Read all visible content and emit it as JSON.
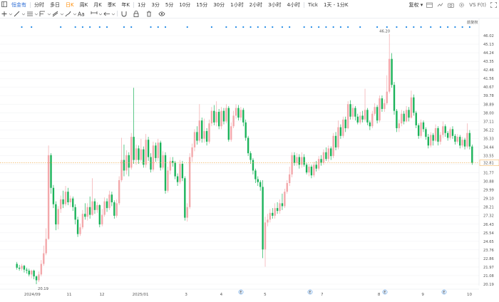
{
  "toolbar": {
    "symbol": "恒金有",
    "periods": [
      "分时",
      "多日",
      "日K",
      "周K",
      "月K",
      "季K",
      "年K",
      "1分",
      "3分",
      "5分",
      "10分",
      "15分",
      "30分",
      "1小时",
      "2小时",
      "3小时",
      "4小时",
      "Tick",
      "1天 - 1分K"
    ],
    "active_period": "日K",
    "right_text": "复权",
    "fx_text": "VS",
    "fx_suffix": "F(t)",
    "icons": [
      "calendar-icon",
      "compare-icon",
      "camera-icon",
      "settings-icon",
      "fullscreen-icon"
    ]
  },
  "drawing_tools": [
    "crosshair-icon",
    "trend-line-icon",
    "horizontal-line-icon",
    "fibonacci-icon",
    "channel-icon",
    "brush-icon",
    "text-icon",
    "measure-icon",
    "arrow-icon",
    "magnet-icon",
    "lock-icon",
    "trash-icon",
    "eye-icon"
  ],
  "chart_data": {
    "type": "candlestick",
    "title": "",
    "y_ticks": [
      "46.02",
      "45.13",
      "44.24",
      "43.35",
      "42.46",
      "41.56",
      "40.67",
      "39.78",
      "38.89",
      "38.00",
      "37.11",
      "36.22",
      "35.33",
      "34.44",
      "33.55",
      "32.66",
      "31.77",
      "30.88",
      "29.99",
      "29.10",
      "28.21",
      "27.32",
      "26.43",
      "25.54",
      "24.65",
      "23.76",
      "22.86",
      "21.97",
      "21.08",
      "20.19"
    ],
    "ylim": [
      20.19,
      46.02
    ],
    "current_price": "32.81",
    "max_label": "46.20",
    "min_label": "20.19",
    "x_labels": [
      "2024/09",
      "11",
      "12",
      "2025/01",
      "3",
      "4",
      "5",
      "7",
      "8",
      "9",
      "10"
    ],
    "event_markers": [
      "E",
      "E",
      "E",
      "E"
    ],
    "top_link": "前复权",
    "colors": {
      "up": "#f3a8ab",
      "down": "#1bb35a",
      "grid": "#f1f2f4",
      "price_line": "#f0a640",
      "marker": "#1e88e5"
    },
    "candles": [
      {
        "o": 22.3,
        "c": 21.9,
        "h": 22.5,
        "l": 21.7
      },
      {
        "o": 21.9,
        "c": 21.8,
        "h": 22.2,
        "l": 21.6
      },
      {
        "o": 21.8,
        "c": 22.1,
        "h": 22.3,
        "l": 21.6
      },
      {
        "o": 22.1,
        "c": 21.7,
        "h": 22.2,
        "l": 21.4
      },
      {
        "o": 21.7,
        "c": 21.6,
        "h": 21.9,
        "l": 21.3
      },
      {
        "o": 21.6,
        "c": 21.2,
        "h": 21.8,
        "l": 21.0
      },
      {
        "o": 21.2,
        "c": 21.6,
        "h": 21.7,
        "l": 20.8
      },
      {
        "o": 21.6,
        "c": 21.0,
        "h": 21.7,
        "l": 20.7
      },
      {
        "o": 21.0,
        "c": 20.6,
        "h": 21.1,
        "l": 20.19
      },
      {
        "o": 20.6,
        "c": 21.2,
        "h": 21.5,
        "l": 20.4
      },
      {
        "o": 21.2,
        "c": 22.3,
        "h": 22.7,
        "l": 21.0
      },
      {
        "o": 22.3,
        "c": 23.4,
        "h": 24.2,
        "l": 22.1
      },
      {
        "o": 23.4,
        "c": 24.9,
        "h": 26.0,
        "l": 23.2
      },
      {
        "o": 24.9,
        "c": 33.6,
        "h": 34.6,
        "l": 24.8
      },
      {
        "o": 33.6,
        "c": 30.2,
        "h": 33.8,
        "l": 29.6
      },
      {
        "o": 30.2,
        "c": 28.5,
        "h": 30.5,
        "l": 28.1
      },
      {
        "o": 28.5,
        "c": 26.4,
        "h": 28.8,
        "l": 25.8
      },
      {
        "o": 26.4,
        "c": 28.0,
        "h": 28.3,
        "l": 25.9
      },
      {
        "o": 28.0,
        "c": 29.0,
        "h": 29.4,
        "l": 27.6
      },
      {
        "o": 29.0,
        "c": 28.5,
        "h": 29.9,
        "l": 28.1
      },
      {
        "o": 28.5,
        "c": 29.8,
        "h": 30.4,
        "l": 28.3
      },
      {
        "o": 29.8,
        "c": 28.7,
        "h": 30.2,
        "l": 28.4
      },
      {
        "o": 28.7,
        "c": 29.1,
        "h": 29.4,
        "l": 28.2
      },
      {
        "o": 29.1,
        "c": 28.2,
        "h": 29.3,
        "l": 27.8
      },
      {
        "o": 28.2,
        "c": 26.9,
        "h": 28.5,
        "l": 26.4
      },
      {
        "o": 26.9,
        "c": 25.4,
        "h": 27.2,
        "l": 25.1
      },
      {
        "o": 25.4,
        "c": 26.1,
        "h": 26.5,
        "l": 25.2
      },
      {
        "o": 26.1,
        "c": 27.5,
        "h": 27.9,
        "l": 25.9
      },
      {
        "o": 27.5,
        "c": 27.2,
        "h": 28.6,
        "l": 26.9
      },
      {
        "o": 27.2,
        "c": 28.2,
        "h": 28.6,
        "l": 26.8
      },
      {
        "o": 28.2,
        "c": 27.4,
        "h": 29.3,
        "l": 27.0
      },
      {
        "o": 27.4,
        "c": 28.8,
        "h": 31.2,
        "l": 27.3
      },
      {
        "o": 28.8,
        "c": 27.9,
        "h": 29.1,
        "l": 27.5
      },
      {
        "o": 27.9,
        "c": 28.4,
        "h": 28.7,
        "l": 27.6
      },
      {
        "o": 28.4,
        "c": 26.4,
        "h": 28.5,
        "l": 26.1
      },
      {
        "o": 26.4,
        "c": 27.4,
        "h": 28.0,
        "l": 26.2
      },
      {
        "o": 27.4,
        "c": 28.8,
        "h": 29.2,
        "l": 27.2
      },
      {
        "o": 28.8,
        "c": 28.1,
        "h": 29.1,
        "l": 27.7
      },
      {
        "o": 28.1,
        "c": 29.5,
        "h": 29.9,
        "l": 27.9
      },
      {
        "o": 29.5,
        "c": 28.7,
        "h": 29.8,
        "l": 28.3
      },
      {
        "o": 28.7,
        "c": 27.3,
        "h": 28.9,
        "l": 27.0
      },
      {
        "o": 27.3,
        "c": 28.6,
        "h": 29.0,
        "l": 27.1
      },
      {
        "o": 28.6,
        "c": 31.0,
        "h": 31.4,
        "l": 28.4
      },
      {
        "o": 31.0,
        "c": 33.1,
        "h": 35.4,
        "l": 30.8
      },
      {
        "o": 33.1,
        "c": 32.0,
        "h": 34.7,
        "l": 31.4
      },
      {
        "o": 32.0,
        "c": 33.6,
        "h": 34.1,
        "l": 31.6
      },
      {
        "o": 33.6,
        "c": 32.3,
        "h": 33.9,
        "l": 31.4
      },
      {
        "o": 32.3,
        "c": 35.5,
        "h": 35.9,
        "l": 32.1
      },
      {
        "o": 35.5,
        "c": 33.1,
        "h": 40.6,
        "l": 32.7
      },
      {
        "o": 33.1,
        "c": 34.3,
        "h": 34.7,
        "l": 32.6
      },
      {
        "o": 34.3,
        "c": 33.1,
        "h": 34.6,
        "l": 32.7
      },
      {
        "o": 33.1,
        "c": 34.2,
        "h": 35.3,
        "l": 32.9
      },
      {
        "o": 34.2,
        "c": 32.6,
        "h": 34.5,
        "l": 32.3
      },
      {
        "o": 32.6,
        "c": 35.2,
        "h": 35.8,
        "l": 32.3
      },
      {
        "o": 35.2,
        "c": 33.4,
        "h": 35.5,
        "l": 33.0
      },
      {
        "o": 33.4,
        "c": 32.1,
        "h": 33.8,
        "l": 31.8
      },
      {
        "o": 32.1,
        "c": 34.6,
        "h": 35.0,
        "l": 31.9
      },
      {
        "o": 34.6,
        "c": 33.3,
        "h": 34.9,
        "l": 32.9
      },
      {
        "o": 33.3,
        "c": 34.9,
        "h": 35.3,
        "l": 33.0
      },
      {
        "o": 34.9,
        "c": 32.3,
        "h": 35.1,
        "l": 32.0
      },
      {
        "o": 32.3,
        "c": 33.6,
        "h": 34.0,
        "l": 32.1
      },
      {
        "o": 33.6,
        "c": 29.9,
        "h": 33.9,
        "l": 29.6
      },
      {
        "o": 29.9,
        "c": 32.0,
        "h": 32.4,
        "l": 29.7
      },
      {
        "o": 32.0,
        "c": 33.0,
        "h": 33.4,
        "l": 31.6
      },
      {
        "o": 33.0,
        "c": 32.8,
        "h": 33.4,
        "l": 32.4
      },
      {
        "o": 32.8,
        "c": 31.4,
        "h": 33.0,
        "l": 31.1
      },
      {
        "o": 31.4,
        "c": 30.8,
        "h": 31.7,
        "l": 30.4
      },
      {
        "o": 30.8,
        "c": 32.7,
        "h": 33.1,
        "l": 30.6
      },
      {
        "o": 32.7,
        "c": 31.2,
        "h": 33.0,
        "l": 30.9
      },
      {
        "o": 31.2,
        "c": 27.1,
        "h": 31.4,
        "l": 26.8
      },
      {
        "o": 27.1,
        "c": 28.2,
        "h": 28.6,
        "l": 26.7
      },
      {
        "o": 28.2,
        "c": 33.4,
        "h": 33.8,
        "l": 28.0
      },
      {
        "o": 33.4,
        "c": 34.4,
        "h": 34.8,
        "l": 32.9
      },
      {
        "o": 34.4,
        "c": 36.0,
        "h": 36.3,
        "l": 34.0
      },
      {
        "o": 36.0,
        "c": 35.1,
        "h": 36.6,
        "l": 34.7
      },
      {
        "o": 35.1,
        "c": 37.2,
        "h": 38.9,
        "l": 34.9
      },
      {
        "o": 37.2,
        "c": 35.3,
        "h": 37.5,
        "l": 34.9
      },
      {
        "o": 35.3,
        "c": 36.1,
        "h": 37.4,
        "l": 34.9
      },
      {
        "o": 36.1,
        "c": 35.0,
        "h": 36.4,
        "l": 34.6
      },
      {
        "o": 35.0,
        "c": 36.9,
        "h": 37.3,
        "l": 34.8
      },
      {
        "o": 36.9,
        "c": 38.2,
        "h": 38.6,
        "l": 36.6
      },
      {
        "o": 38.2,
        "c": 37.0,
        "h": 38.8,
        "l": 36.7
      },
      {
        "o": 37.0,
        "c": 38.1,
        "h": 39.2,
        "l": 36.6
      },
      {
        "o": 38.1,
        "c": 36.6,
        "h": 38.4,
        "l": 36.3
      },
      {
        "o": 36.6,
        "c": 38.2,
        "h": 38.6,
        "l": 36.3
      },
      {
        "o": 38.2,
        "c": 37.1,
        "h": 38.5,
        "l": 36.8
      },
      {
        "o": 37.1,
        "c": 38.5,
        "h": 38.9,
        "l": 36.9
      },
      {
        "o": 38.5,
        "c": 35.2,
        "h": 38.7,
        "l": 35.0
      },
      {
        "o": 35.2,
        "c": 36.6,
        "h": 37.0,
        "l": 35.0
      },
      {
        "o": 36.6,
        "c": 37.7,
        "h": 38.2,
        "l": 36.4
      },
      {
        "o": 37.7,
        "c": 38.5,
        "h": 38.9,
        "l": 37.4
      },
      {
        "o": 38.5,
        "c": 37.5,
        "h": 38.8,
        "l": 37.2
      },
      {
        "o": 37.5,
        "c": 38.3,
        "h": 38.6,
        "l": 37.2
      },
      {
        "o": 38.3,
        "c": 37.0,
        "h": 38.5,
        "l": 36.6
      },
      {
        "o": 37.0,
        "c": 35.4,
        "h": 37.3,
        "l": 35.1
      },
      {
        "o": 35.4,
        "c": 33.8,
        "h": 35.6,
        "l": 33.5
      },
      {
        "o": 33.8,
        "c": 33.1,
        "h": 34.0,
        "l": 32.7
      },
      {
        "o": 33.1,
        "c": 32.0,
        "h": 33.3,
        "l": 31.6
      },
      {
        "o": 32.0,
        "c": 31.1,
        "h": 32.2,
        "l": 30.7
      },
      {
        "o": 31.1,
        "c": 30.8,
        "h": 31.4,
        "l": 30.4
      },
      {
        "o": 30.8,
        "c": 30.3,
        "h": 31.0,
        "l": 29.9
      },
      {
        "o": 30.3,
        "c": 23.8,
        "h": 31.0,
        "l": 22.9
      },
      {
        "o": 23.8,
        "c": 26.6,
        "h": 27.2,
        "l": 22.0
      },
      {
        "o": 26.6,
        "c": 26.9,
        "h": 27.5,
        "l": 26.2
      },
      {
        "o": 26.9,
        "c": 27.6,
        "h": 28.0,
        "l": 26.6
      },
      {
        "o": 27.6,
        "c": 27.3,
        "h": 28.1,
        "l": 27.0
      },
      {
        "o": 27.3,
        "c": 28.1,
        "h": 28.6,
        "l": 27.0
      },
      {
        "o": 28.1,
        "c": 27.8,
        "h": 28.7,
        "l": 27.5
      },
      {
        "o": 27.8,
        "c": 28.6,
        "h": 29.0,
        "l": 27.5
      },
      {
        "o": 28.6,
        "c": 28.3,
        "h": 29.6,
        "l": 27.9
      },
      {
        "o": 28.3,
        "c": 29.8,
        "h": 30.1,
        "l": 28.1
      },
      {
        "o": 29.8,
        "c": 30.7,
        "h": 31.0,
        "l": 29.6
      },
      {
        "o": 30.7,
        "c": 31.6,
        "h": 32.4,
        "l": 30.4
      },
      {
        "o": 31.6,
        "c": 33.6,
        "h": 33.9,
        "l": 31.3
      },
      {
        "o": 33.6,
        "c": 32.8,
        "h": 33.9,
        "l": 32.5
      },
      {
        "o": 32.8,
        "c": 33.4,
        "h": 33.8,
        "l": 32.5
      },
      {
        "o": 33.4,
        "c": 32.6,
        "h": 33.7,
        "l": 32.2
      },
      {
        "o": 32.6,
        "c": 33.4,
        "h": 33.9,
        "l": 32.3
      },
      {
        "o": 33.4,
        "c": 32.6,
        "h": 33.7,
        "l": 32.4
      },
      {
        "o": 32.6,
        "c": 31.8,
        "h": 32.8,
        "l": 31.6
      },
      {
        "o": 31.8,
        "c": 32.4,
        "h": 32.7,
        "l": 31.4
      },
      {
        "o": 32.4,
        "c": 31.5,
        "h": 32.6,
        "l": 31.2
      },
      {
        "o": 31.5,
        "c": 32.6,
        "h": 32.9,
        "l": 31.3
      },
      {
        "o": 32.6,
        "c": 32.2,
        "h": 33.0,
        "l": 31.9
      },
      {
        "o": 32.2,
        "c": 33.2,
        "h": 33.5,
        "l": 32.0
      },
      {
        "o": 33.2,
        "c": 32.8,
        "h": 33.6,
        "l": 32.5
      },
      {
        "o": 32.8,
        "c": 33.9,
        "h": 34.2,
        "l": 32.6
      },
      {
        "o": 33.9,
        "c": 33.2,
        "h": 34.4,
        "l": 33.0
      },
      {
        "o": 33.2,
        "c": 34.3,
        "h": 34.6,
        "l": 32.9
      },
      {
        "o": 34.3,
        "c": 33.5,
        "h": 34.5,
        "l": 33.1
      },
      {
        "o": 33.5,
        "c": 35.6,
        "h": 35.9,
        "l": 33.3
      },
      {
        "o": 35.6,
        "c": 34.4,
        "h": 36.0,
        "l": 34.1
      },
      {
        "o": 34.4,
        "c": 36.5,
        "h": 37.2,
        "l": 34.2
      },
      {
        "o": 36.5,
        "c": 35.6,
        "h": 36.8,
        "l": 35.3
      },
      {
        "o": 35.6,
        "c": 37.3,
        "h": 37.6,
        "l": 35.4
      },
      {
        "o": 37.3,
        "c": 36.4,
        "h": 37.6,
        "l": 36.0
      },
      {
        "o": 36.4,
        "c": 38.9,
        "h": 39.2,
        "l": 36.3
      },
      {
        "o": 38.9,
        "c": 37.6,
        "h": 39.3,
        "l": 37.3
      },
      {
        "o": 37.6,
        "c": 38.5,
        "h": 38.9,
        "l": 37.3
      },
      {
        "o": 38.5,
        "c": 37.6,
        "h": 38.7,
        "l": 37.2
      },
      {
        "o": 37.6,
        "c": 37.0,
        "h": 37.9,
        "l": 36.8
      },
      {
        "o": 37.0,
        "c": 37.7,
        "h": 38.1,
        "l": 36.8
      },
      {
        "o": 37.7,
        "c": 37.3,
        "h": 38.2,
        "l": 37.0
      },
      {
        "o": 37.3,
        "c": 38.3,
        "h": 40.5,
        "l": 37.1
      },
      {
        "o": 38.3,
        "c": 37.0,
        "h": 38.5,
        "l": 36.7
      },
      {
        "o": 37.0,
        "c": 36.6,
        "h": 37.2,
        "l": 36.2
      },
      {
        "o": 36.6,
        "c": 37.9,
        "h": 38.2,
        "l": 36.4
      },
      {
        "o": 37.9,
        "c": 38.6,
        "h": 39.0,
        "l": 37.7
      },
      {
        "o": 38.6,
        "c": 37.2,
        "h": 38.8,
        "l": 36.9
      },
      {
        "o": 37.2,
        "c": 39.5,
        "h": 39.8,
        "l": 37.0
      },
      {
        "o": 39.5,
        "c": 38.4,
        "h": 39.8,
        "l": 38.1
      },
      {
        "o": 38.4,
        "c": 39.0,
        "h": 39.4,
        "l": 38.1
      },
      {
        "o": 39.0,
        "c": 40.2,
        "h": 41.9,
        "l": 38.8
      },
      {
        "o": 40.2,
        "c": 43.6,
        "h": 46.2,
        "l": 40.0
      },
      {
        "o": 43.6,
        "c": 40.9,
        "h": 44.2,
        "l": 40.6
      },
      {
        "o": 40.9,
        "c": 38.2,
        "h": 41.2,
        "l": 37.8
      },
      {
        "o": 38.2,
        "c": 36.4,
        "h": 38.4,
        "l": 36.0
      },
      {
        "o": 36.4,
        "c": 36.9,
        "h": 37.3,
        "l": 36.0
      },
      {
        "o": 36.9,
        "c": 37.9,
        "h": 38.3,
        "l": 36.6
      },
      {
        "o": 37.9,
        "c": 37.1,
        "h": 38.2,
        "l": 36.8
      },
      {
        "o": 37.1,
        "c": 38.3,
        "h": 38.7,
        "l": 37.0
      },
      {
        "o": 38.3,
        "c": 37.5,
        "h": 38.6,
        "l": 37.1
      },
      {
        "o": 37.5,
        "c": 39.6,
        "h": 40.3,
        "l": 37.4
      },
      {
        "o": 39.6,
        "c": 38.0,
        "h": 39.9,
        "l": 37.7
      },
      {
        "o": 38.0,
        "c": 36.7,
        "h": 38.2,
        "l": 36.4
      },
      {
        "o": 36.7,
        "c": 35.6,
        "h": 36.9,
        "l": 35.3
      },
      {
        "o": 35.6,
        "c": 37.0,
        "h": 37.3,
        "l": 35.4
      },
      {
        "o": 37.0,
        "c": 36.3,
        "h": 37.2,
        "l": 36.0
      },
      {
        "o": 36.3,
        "c": 35.5,
        "h": 36.5,
        "l": 35.2
      },
      {
        "o": 35.5,
        "c": 34.6,
        "h": 35.8,
        "l": 34.3
      },
      {
        "o": 34.6,
        "c": 35.7,
        "h": 36.0,
        "l": 34.4
      },
      {
        "o": 35.7,
        "c": 35.1,
        "h": 35.9,
        "l": 34.6
      },
      {
        "o": 35.1,
        "c": 36.4,
        "h": 36.8,
        "l": 35.0
      },
      {
        "o": 36.4,
        "c": 35.0,
        "h": 36.6,
        "l": 34.6
      },
      {
        "o": 35.0,
        "c": 35.7,
        "h": 36.0,
        "l": 34.7
      },
      {
        "o": 35.7,
        "c": 36.6,
        "h": 37.1,
        "l": 35.4
      },
      {
        "o": 36.6,
        "c": 35.9,
        "h": 36.8,
        "l": 35.5
      },
      {
        "o": 35.9,
        "c": 35.4,
        "h": 36.1,
        "l": 35.1
      },
      {
        "o": 35.4,
        "c": 36.3,
        "h": 36.5,
        "l": 35.2
      },
      {
        "o": 36.3,
        "c": 35.6,
        "h": 36.6,
        "l": 35.3
      },
      {
        "o": 35.6,
        "c": 35.0,
        "h": 35.8,
        "l": 34.7
      },
      {
        "o": 35.0,
        "c": 35.5,
        "h": 35.8,
        "l": 34.8
      },
      {
        "o": 35.5,
        "c": 34.6,
        "h": 35.7,
        "l": 34.3
      },
      {
        "o": 34.6,
        "c": 35.2,
        "h": 35.5,
        "l": 34.4
      },
      {
        "o": 35.2,
        "c": 34.5,
        "h": 35.4,
        "l": 34.2
      },
      {
        "o": 34.5,
        "c": 35.9,
        "h": 36.9,
        "l": 34.3
      },
      {
        "o": 35.9,
        "c": 34.5,
        "h": 36.2,
        "l": 34.2
      },
      {
        "o": 34.5,
        "c": 32.81,
        "h": 34.7,
        "l": 32.6
      }
    ]
  }
}
